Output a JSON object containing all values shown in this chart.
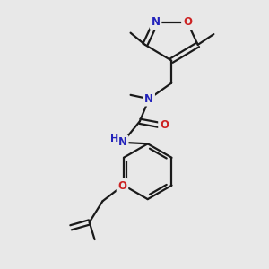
{
  "bg_color": "#e8e8e8",
  "bond_color": "#1a1a1a",
  "N_color": "#2222bb",
  "O_color": "#cc2222",
  "line_width": 1.6,
  "font_size": 8.5,
  "figsize": [
    3.0,
    3.0
  ],
  "dpi": 100,
  "xlim": [
    0,
    10
  ],
  "ylim": [
    0,
    10
  ]
}
